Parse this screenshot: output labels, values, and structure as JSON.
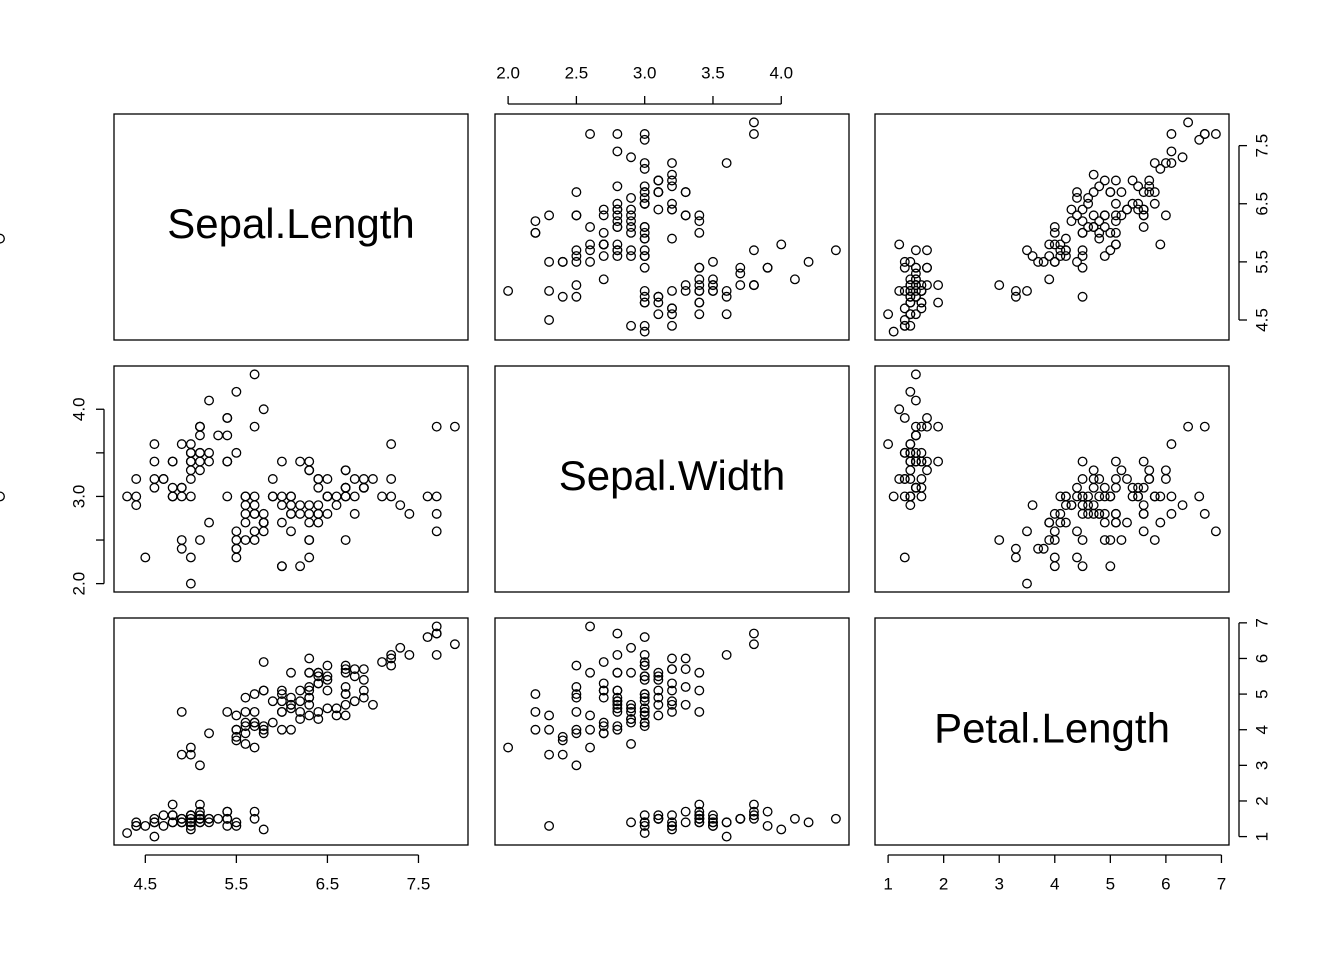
{
  "chart_data": {
    "type": "scatter-matrix",
    "variables": [
      {
        "name": "Sepal.Length",
        "lim": [
          4.156,
          8.044
        ],
        "ticks": [
          4.5,
          5.5,
          6.5,
          7.5
        ],
        "values": [
          5.1,
          4.9,
          4.7,
          4.6,
          5.0,
          5.4,
          4.6,
          5.0,
          4.4,
          4.9,
          5.4,
          4.8,
          4.8,
          4.3,
          5.8,
          5.7,
          5.4,
          5.1,
          5.7,
          5.1,
          5.4,
          5.1,
          4.6,
          5.1,
          4.8,
          5.0,
          5.0,
          5.2,
          5.2,
          4.7,
          4.8,
          5.4,
          5.2,
          5.5,
          4.9,
          5.0,
          5.5,
          4.9,
          4.4,
          5.1,
          5.0,
          4.5,
          4.4,
          5.0,
          5.1,
          4.8,
          5.1,
          4.6,
          5.3,
          5.0,
          7.0,
          6.4,
          6.9,
          5.5,
          6.5,
          5.7,
          6.3,
          4.9,
          6.6,
          5.2,
          5.0,
          5.9,
          6.0,
          6.1,
          5.6,
          6.7,
          5.6,
          5.8,
          6.2,
          5.6,
          5.9,
          6.1,
          6.3,
          6.1,
          6.4,
          6.6,
          6.8,
          6.7,
          6.0,
          5.7,
          5.5,
          5.5,
          5.8,
          6.0,
          5.4,
          6.0,
          6.7,
          6.3,
          5.6,
          5.5,
          5.5,
          6.1,
          5.8,
          5.0,
          5.6,
          5.7,
          5.7,
          6.2,
          5.1,
          5.7,
          6.3,
          5.8,
          7.1,
          6.3,
          6.5,
          7.6,
          4.9,
          7.3,
          6.7,
          7.2,
          6.5,
          6.4,
          6.8,
          5.7,
          5.8,
          6.4,
          6.5,
          7.7,
          7.7,
          6.0,
          6.9,
          5.6,
          7.7,
          6.3,
          6.7,
          7.2,
          6.2,
          6.1,
          6.4,
          7.2,
          7.4,
          7.9,
          6.4,
          6.3,
          6.1,
          7.7,
          6.3,
          6.4,
          6.0,
          6.9,
          6.7,
          6.9,
          5.8,
          6.8,
          6.7,
          6.7,
          6.3,
          6.5,
          6.2,
          5.9
        ]
      },
      {
        "name": "Sepal.Width",
        "lim": [
          1.904,
          4.496
        ],
        "ticks": [
          {
            "value": 2,
            "label": "2.0"
          },
          2.5,
          {
            "value": 3,
            "label": "3.0"
          },
          3.5,
          {
            "value": 4,
            "label": "4.0"
          }
        ],
        "values": [
          3.5,
          3.0,
          3.2,
          3.1,
          3.6,
          3.9,
          3.4,
          3.4,
          2.9,
          3.1,
          3.7,
          3.4,
          3.0,
          3.0,
          4.0,
          4.4,
          3.9,
          3.5,
          3.8,
          3.8,
          3.4,
          3.7,
          3.6,
          3.3,
          3.4,
          3.0,
          3.4,
          3.5,
          3.4,
          3.2,
          3.1,
          3.4,
          4.1,
          4.2,
          3.1,
          3.2,
          3.5,
          3.6,
          3.0,
          3.4,
          3.5,
          2.3,
          3.2,
          3.5,
          3.8,
          3.0,
          3.8,
          3.2,
          3.7,
          3.3,
          3.2,
          3.2,
          3.1,
          2.3,
          2.8,
          2.8,
          3.3,
          2.4,
          2.9,
          2.7,
          2.0,
          3.0,
          2.2,
          2.9,
          2.9,
          3.1,
          3.0,
          2.7,
          2.2,
          2.5,
          3.2,
          2.8,
          2.5,
          2.8,
          2.9,
          3.0,
          2.8,
          3.0,
          2.9,
          2.6,
          2.4,
          2.4,
          2.7,
          2.7,
          3.0,
          3.4,
          3.1,
          2.3,
          3.0,
          2.5,
          2.6,
          3.0,
          2.6,
          2.3,
          2.7,
          3.0,
          2.9,
          2.9,
          2.5,
          2.8,
          3.3,
          2.7,
          3.0,
          2.9,
          3.0,
          3.0,
          2.5,
          2.9,
          2.5,
          3.6,
          3.2,
          2.7,
          3.0,
          2.5,
          2.8,
          3.2,
          3.0,
          3.8,
          2.6,
          2.2,
          3.2,
          2.8,
          2.8,
          2.7,
          3.3,
          3.2,
          2.8,
          3.0,
          2.8,
          3.0,
          2.8,
          3.8,
          2.8,
          2.8,
          2.6,
          3.0,
          3.4,
          3.1,
          3.0,
          3.1,
          3.1,
          3.1,
          2.7,
          3.2,
          3.3,
          3.0,
          2.5,
          3.0,
          3.4,
          3.0
        ]
      },
      {
        "name": "Petal.Length",
        "lim": [
          0.764,
          7.136
        ],
        "ticks": [
          1,
          2,
          3,
          4,
          5,
          6,
          7
        ],
        "values": [
          1.4,
          1.4,
          1.3,
          1.5,
          1.4,
          1.7,
          1.4,
          1.5,
          1.4,
          1.5,
          1.5,
          1.6,
          1.4,
          1.1,
          1.2,
          1.5,
          1.3,
          1.4,
          1.7,
          1.5,
          1.7,
          1.5,
          1.0,
          1.7,
          1.9,
          1.6,
          1.6,
          1.5,
          1.4,
          1.6,
          1.6,
          1.5,
          1.5,
          1.4,
          1.5,
          1.2,
          1.3,
          1.4,
          1.3,
          1.5,
          1.3,
          1.3,
          1.3,
          1.6,
          1.9,
          1.4,
          1.6,
          1.4,
          1.5,
          1.4,
          4.7,
          4.5,
          4.9,
          4.0,
          4.6,
          4.5,
          4.7,
          3.3,
          4.6,
          3.9,
          3.5,
          4.2,
          4.0,
          4.7,
          3.6,
          4.4,
          4.5,
          4.1,
          4.5,
          3.9,
          4.8,
          4.0,
          4.9,
          4.7,
          4.3,
          4.4,
          4.8,
          5.0,
          4.5,
          3.5,
          3.8,
          3.7,
          3.9,
          5.1,
          4.5,
          4.5,
          4.7,
          4.4,
          4.1,
          4.0,
          4.4,
          4.6,
          4.0,
          3.3,
          4.2,
          4.2,
          4.2,
          4.3,
          3.0,
          4.1,
          6.0,
          5.1,
          5.9,
          5.6,
          5.8,
          6.6,
          4.5,
          6.3,
          5.8,
          6.1,
          5.1,
          5.3,
          5.5,
          5.0,
          5.1,
          5.3,
          5.5,
          6.7,
          6.9,
          5.0,
          5.7,
          4.9,
          6.7,
          4.9,
          5.7,
          6.0,
          4.8,
          4.9,
          5.6,
          5.8,
          6.1,
          6.4,
          5.6,
          5.1,
          5.6,
          6.1,
          5.6,
          5.5,
          4.8,
          5.4,
          5.6,
          5.1,
          5.9,
          5.7,
          5.2,
          5.0,
          5.2,
          5.4,
          5.1
        ]
      }
    ]
  }
}
